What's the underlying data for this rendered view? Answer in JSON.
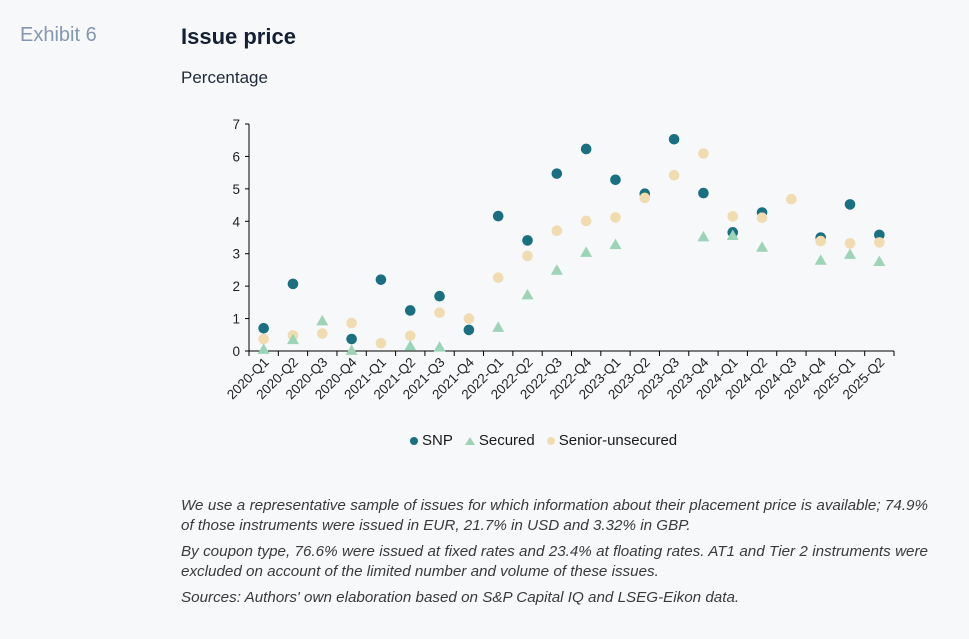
{
  "header": {
    "exhibit_label": "Exhibit 6",
    "title": "Issue price",
    "subtitle": "Percentage"
  },
  "colors": {
    "snp": "#1a6f80",
    "secured": "#9dd4b8",
    "senior_unsecured": "#f0dcb0"
  },
  "chart_data": {
    "type": "scatter",
    "title": "Issue price",
    "subtitle": "Percentage",
    "xlabel": "",
    "ylabel": "Percentage",
    "ylim": [
      0,
      7
    ],
    "yticks": [
      "0",
      "1",
      "2",
      "3",
      "4",
      "5",
      "6",
      "7"
    ],
    "grid": false,
    "legend_position": "bottom-center",
    "categories": [
      "2020-Q1",
      "2020-Q2",
      "2020-Q3",
      "2020-Q4",
      "2021-Q1",
      "2021-Q2",
      "2021-Q3",
      "2021-Q4",
      "2022-Q1",
      "2022-Q2",
      "2022-Q3",
      "2022-Q4",
      "2023-Q1",
      "2023-Q2",
      "2023-Q3",
      "2023-Q4",
      "2024-Q1",
      "2024-Q2",
      "2024-Q3",
      "2024-Q4",
      "2025-Q1",
      "2025-Q2"
    ],
    "series": [
      {
        "name": "SNP",
        "marker": "circle",
        "values": [
          0.7,
          2.07,
          null,
          0.37,
          2.2,
          1.25,
          1.69,
          0.65,
          4.16,
          3.41,
          5.47,
          6.23,
          5.28,
          4.85,
          6.53,
          4.87,
          3.66,
          4.27,
          null,
          3.5,
          4.52,
          3.58
        ]
      },
      {
        "name": "Secured",
        "marker": "triangle",
        "values": [
          0.05,
          0.35,
          0.93,
          0.02,
          null,
          0.15,
          0.12,
          null,
          0.73,
          1.73,
          2.49,
          3.04,
          3.28,
          null,
          null,
          3.52,
          3.56,
          3.2,
          null,
          2.8,
          2.98,
          2.76
        ]
      },
      {
        "name": "Senior-unsecured",
        "marker": "circle",
        "values": [
          0.37,
          0.48,
          0.54,
          0.86,
          0.24,
          0.47,
          1.18,
          1.0,
          2.26,
          2.93,
          3.71,
          4.01,
          4.12,
          4.72,
          5.42,
          6.09,
          4.15,
          4.11,
          4.68,
          3.39,
          3.32,
          3.35
        ]
      }
    ]
  },
  "legend": {
    "items": [
      "SNP",
      "Secured",
      "Senior-unsecured"
    ]
  },
  "notes": {
    "paragraph_1": "We use a representative sample of issues for which information about their placement price is available; 74.9% of those instruments were issued in EUR, 21.7% in USD and 3.32% in GBP.",
    "paragraph_2": "By coupon type, 76.6% were issued at fixed rates and 23.4% at floating rates. AT1 and Tier 2 instruments were excluded on account of the limited number and volume of these issues.",
    "sources": "Sources: Authors' own elaboration based on S&P Capital IQ and LSEG-Eikon data."
  }
}
